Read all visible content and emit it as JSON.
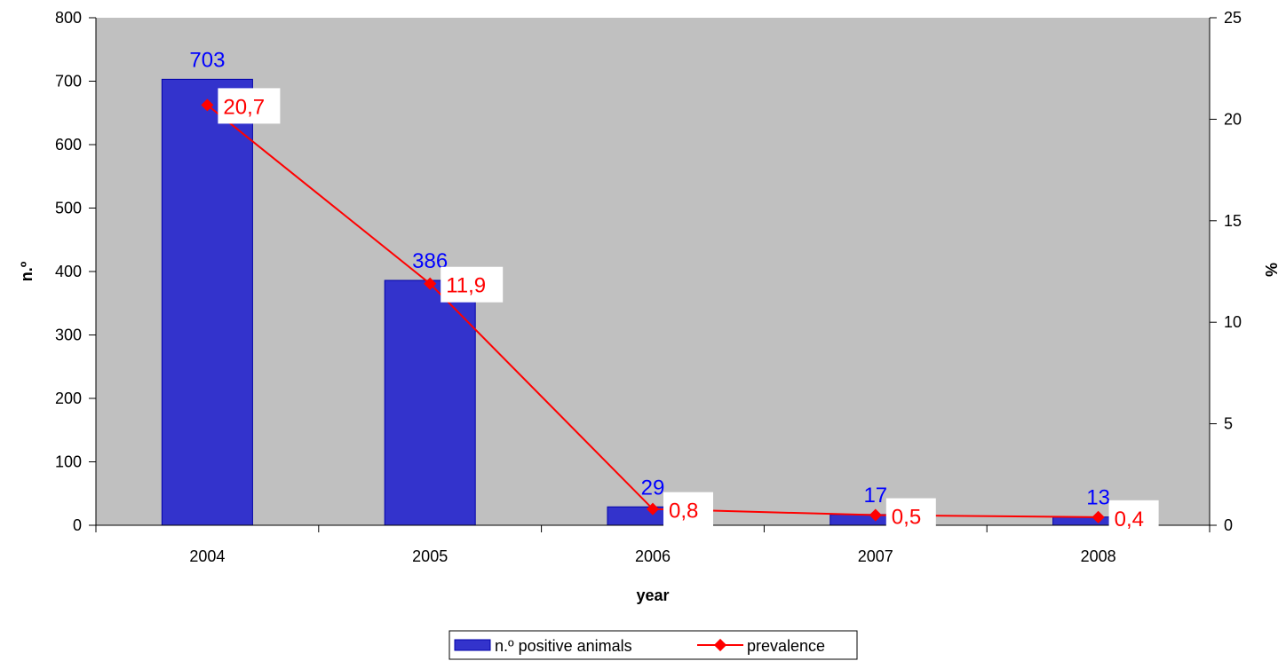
{
  "chart_data": {
    "type": "bar",
    "categories": [
      "2004",
      "2005",
      "2006",
      "2007",
      "2008"
    ],
    "series": [
      {
        "name": "n.º positive animals",
        "type": "bar",
        "axis": "left",
        "values": [
          703,
          386,
          29,
          17,
          13
        ],
        "labels": [
          "703",
          "386",
          "29",
          "17",
          "13"
        ],
        "color": "#3333cc"
      },
      {
        "name": "prevalence",
        "type": "line",
        "axis": "right",
        "values": [
          20.7,
          11.9,
          0.8,
          0.5,
          0.4
        ],
        "labels": [
          "20,7",
          "11,9",
          "0,8",
          "0,5",
          "0,4"
        ],
        "color": "#ff0000"
      }
    ],
    "xlabel": "year",
    "ylabel": "n.º",
    "y2label": "%",
    "ylim": [
      0,
      800
    ],
    "y2lim": [
      0,
      25
    ],
    "yticks": [
      "0",
      "100",
      "200",
      "300",
      "400",
      "500",
      "600",
      "700",
      "800"
    ],
    "y2ticks": [
      "0",
      "5",
      "10",
      "15",
      "20",
      "25"
    ],
    "grid": false,
    "legend_position": "bottom",
    "plot_background": "#c0c0c0",
    "bar_label_color": "#0000ff",
    "line_label_color": "#ff0000"
  }
}
